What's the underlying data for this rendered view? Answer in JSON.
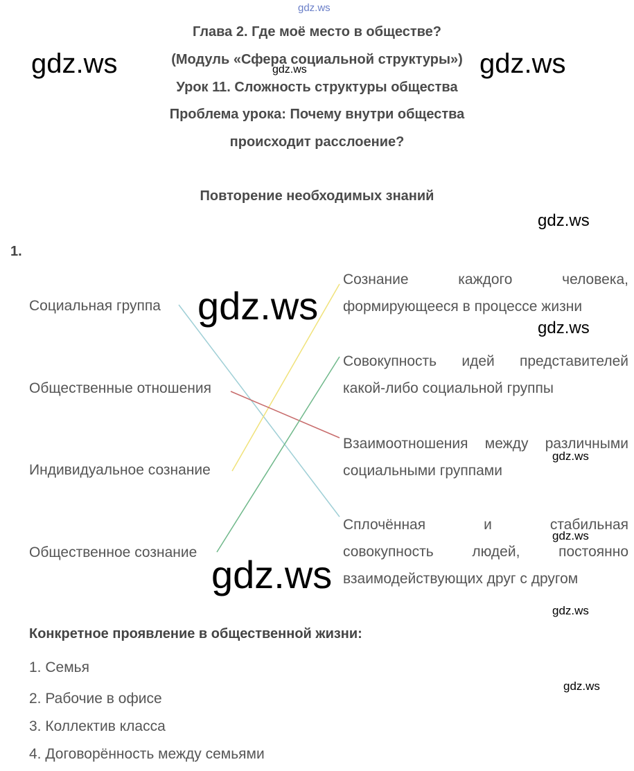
{
  "header": {
    "lines": [
      "Глава 2. Где моё место в обществе?",
      "(Модуль «Сфера социальной структуры»)",
      "Урок 11. Сложность структуры общества",
      "Проблема урока: Почему внутри общества",
      "происходит расслоение?"
    ]
  },
  "section": "Повторение необходимых знаний",
  "task": {
    "number": "1.",
    "left": [
      "Социальная группа",
      "Общественные отношения",
      "Индивидуальное сознание",
      "Общественное сознание"
    ],
    "right": [
      [
        "Сознание каждого человека,",
        "формирующееся в процессе жизни"
      ],
      [
        "Совокупность идей представителей",
        "какой-либо социальной группы"
      ],
      [
        "Взаимоотношения между различными",
        "социальными группами"
      ],
      [
        "Сплочённая и стабильная",
        "совокупность людей, постоянно",
        "взаимодействующих друг с другом"
      ]
    ]
  },
  "examples": {
    "title": "Конкретное проявление в общественной жизни:",
    "items": [
      "1. Семья",
      "2. Рабочие в офисе",
      "3. Коллектив класса",
      "4. Договорённость между семьями"
    ]
  },
  "watermarks": [
    "gdz.ws",
    "gdz.ws",
    "gdz.ws",
    "gdz.ws",
    "gdz.ws",
    "gdz.ws",
    "gdz.ws",
    "gdz.ws",
    "gdz.ws",
    "gdz.ws",
    "gdz.ws",
    "gdz.ws"
  ]
}
